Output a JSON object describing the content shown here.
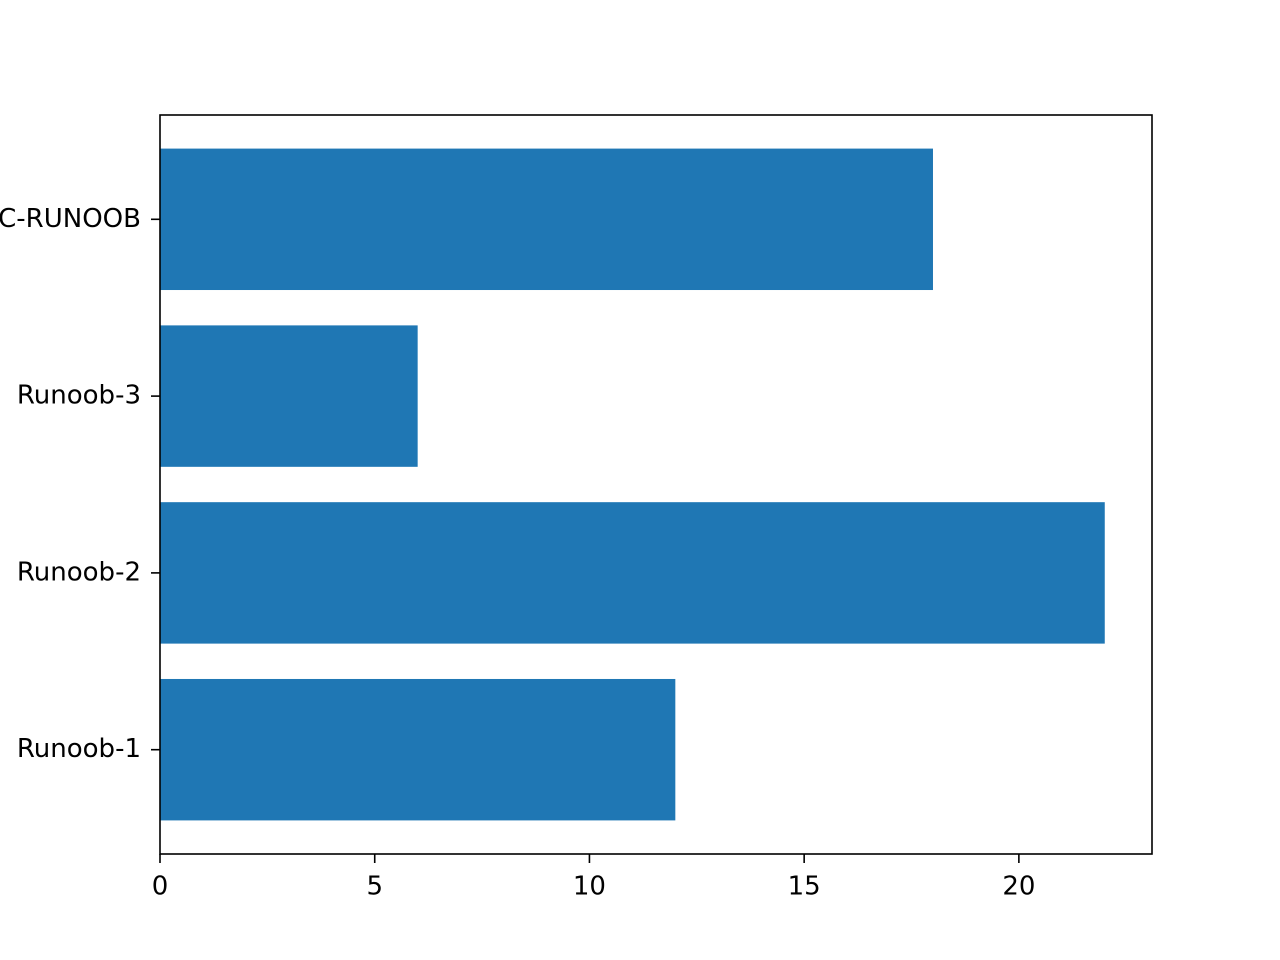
{
  "chart_data": {
    "type": "barh",
    "categories": [
      "Runoob-1",
      "Runoob-2",
      "Runoob-3",
      "C-RUNOOB"
    ],
    "values": [
      12,
      22,
      6,
      18
    ],
    "color": "#1f77b4",
    "xlim": [
      0,
      23.1
    ],
    "xticks": [
      0,
      5,
      10,
      15,
      20
    ],
    "grid": false
  }
}
